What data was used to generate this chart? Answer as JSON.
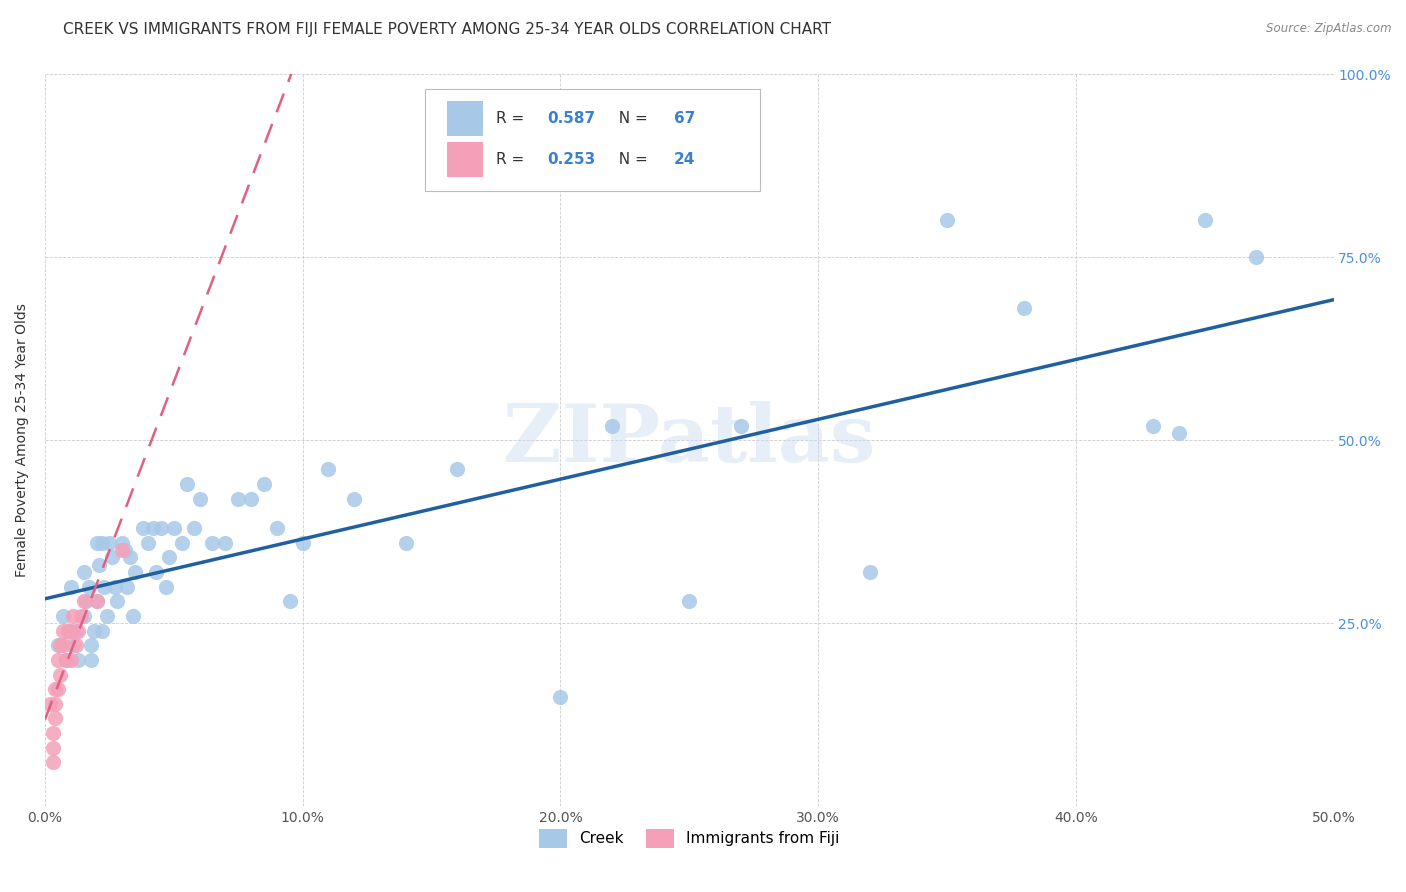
{
  "title": "CREEK VS IMMIGRANTS FROM FIJI FEMALE POVERTY AMONG 25-34 YEAR OLDS CORRELATION CHART",
  "source": "Source: ZipAtlas.com",
  "ylabel": "Female Poverty Among 25-34 Year Olds",
  "xlim": [
    0.0,
    0.5
  ],
  "ylim": [
    0.0,
    1.0
  ],
  "xticks": [
    0.0,
    0.1,
    0.2,
    0.3,
    0.4,
    0.5
  ],
  "yticks": [
    0.0,
    0.25,
    0.5,
    0.75,
    1.0
  ],
  "xticklabels": [
    "0.0%",
    "10.0%",
    "20.0%",
    "30.0%",
    "40.0%",
    "50.0%"
  ],
  "yticklabels_right": [
    "",
    "25.0%",
    "50.0%",
    "75.0%",
    "100.0%"
  ],
  "legend_labels": [
    "Creek",
    "Immigrants from Fiji"
  ],
  "creek_R": 0.587,
  "creek_N": 67,
  "fiji_R": 0.253,
  "fiji_N": 24,
  "creek_color": "#a8c8e8",
  "creek_line_color": "#2060a0",
  "fiji_color": "#f4a0b8",
  "fiji_line_color": "#e06080",
  "background_color": "#ffffff",
  "watermark": "ZIPatlas",
  "title_fontsize": 11,
  "axis_label_fontsize": 10,
  "tick_fontsize": 10,
  "creek_x": [
    0.005,
    0.007,
    0.008,
    0.009,
    0.01,
    0.011,
    0.012,
    0.013,
    0.015,
    0.015,
    0.016,
    0.017,
    0.018,
    0.018,
    0.019,
    0.02,
    0.02,
    0.021,
    0.022,
    0.022,
    0.023,
    0.024,
    0.025,
    0.026,
    0.027,
    0.028,
    0.03,
    0.031,
    0.032,
    0.033,
    0.034,
    0.035,
    0.038,
    0.04,
    0.042,
    0.043,
    0.045,
    0.047,
    0.048,
    0.05,
    0.053,
    0.055,
    0.058,
    0.06,
    0.065,
    0.07,
    0.075,
    0.08,
    0.085,
    0.09,
    0.095,
    0.1,
    0.11,
    0.12,
    0.14,
    0.16,
    0.2,
    0.22,
    0.25,
    0.27,
    0.32,
    0.35,
    0.38,
    0.43,
    0.44,
    0.45,
    0.47
  ],
  "creek_y": [
    0.22,
    0.26,
    0.2,
    0.24,
    0.3,
    0.22,
    0.24,
    0.2,
    0.32,
    0.26,
    0.28,
    0.3,
    0.22,
    0.2,
    0.24,
    0.36,
    0.28,
    0.33,
    0.36,
    0.24,
    0.3,
    0.26,
    0.36,
    0.34,
    0.3,
    0.28,
    0.36,
    0.35,
    0.3,
    0.34,
    0.26,
    0.32,
    0.38,
    0.36,
    0.38,
    0.32,
    0.38,
    0.3,
    0.34,
    0.38,
    0.36,
    0.44,
    0.38,
    0.42,
    0.36,
    0.36,
    0.42,
    0.42,
    0.44,
    0.38,
    0.28,
    0.36,
    0.46,
    0.42,
    0.36,
    0.46,
    0.15,
    0.52,
    0.28,
    0.52,
    0.32,
    0.8,
    0.68,
    0.52,
    0.51,
    0.8,
    0.75
  ],
  "fiji_x": [
    0.002,
    0.003,
    0.003,
    0.003,
    0.004,
    0.004,
    0.004,
    0.005,
    0.005,
    0.006,
    0.006,
    0.007,
    0.007,
    0.008,
    0.009,
    0.01,
    0.01,
    0.011,
    0.012,
    0.013,
    0.014,
    0.015,
    0.02,
    0.03
  ],
  "fiji_y": [
    0.14,
    0.06,
    0.08,
    0.1,
    0.12,
    0.14,
    0.16,
    0.16,
    0.2,
    0.18,
    0.22,
    0.22,
    0.24,
    0.2,
    0.24,
    0.2,
    0.24,
    0.26,
    0.22,
    0.24,
    0.26,
    0.28,
    0.28,
    0.35
  ]
}
